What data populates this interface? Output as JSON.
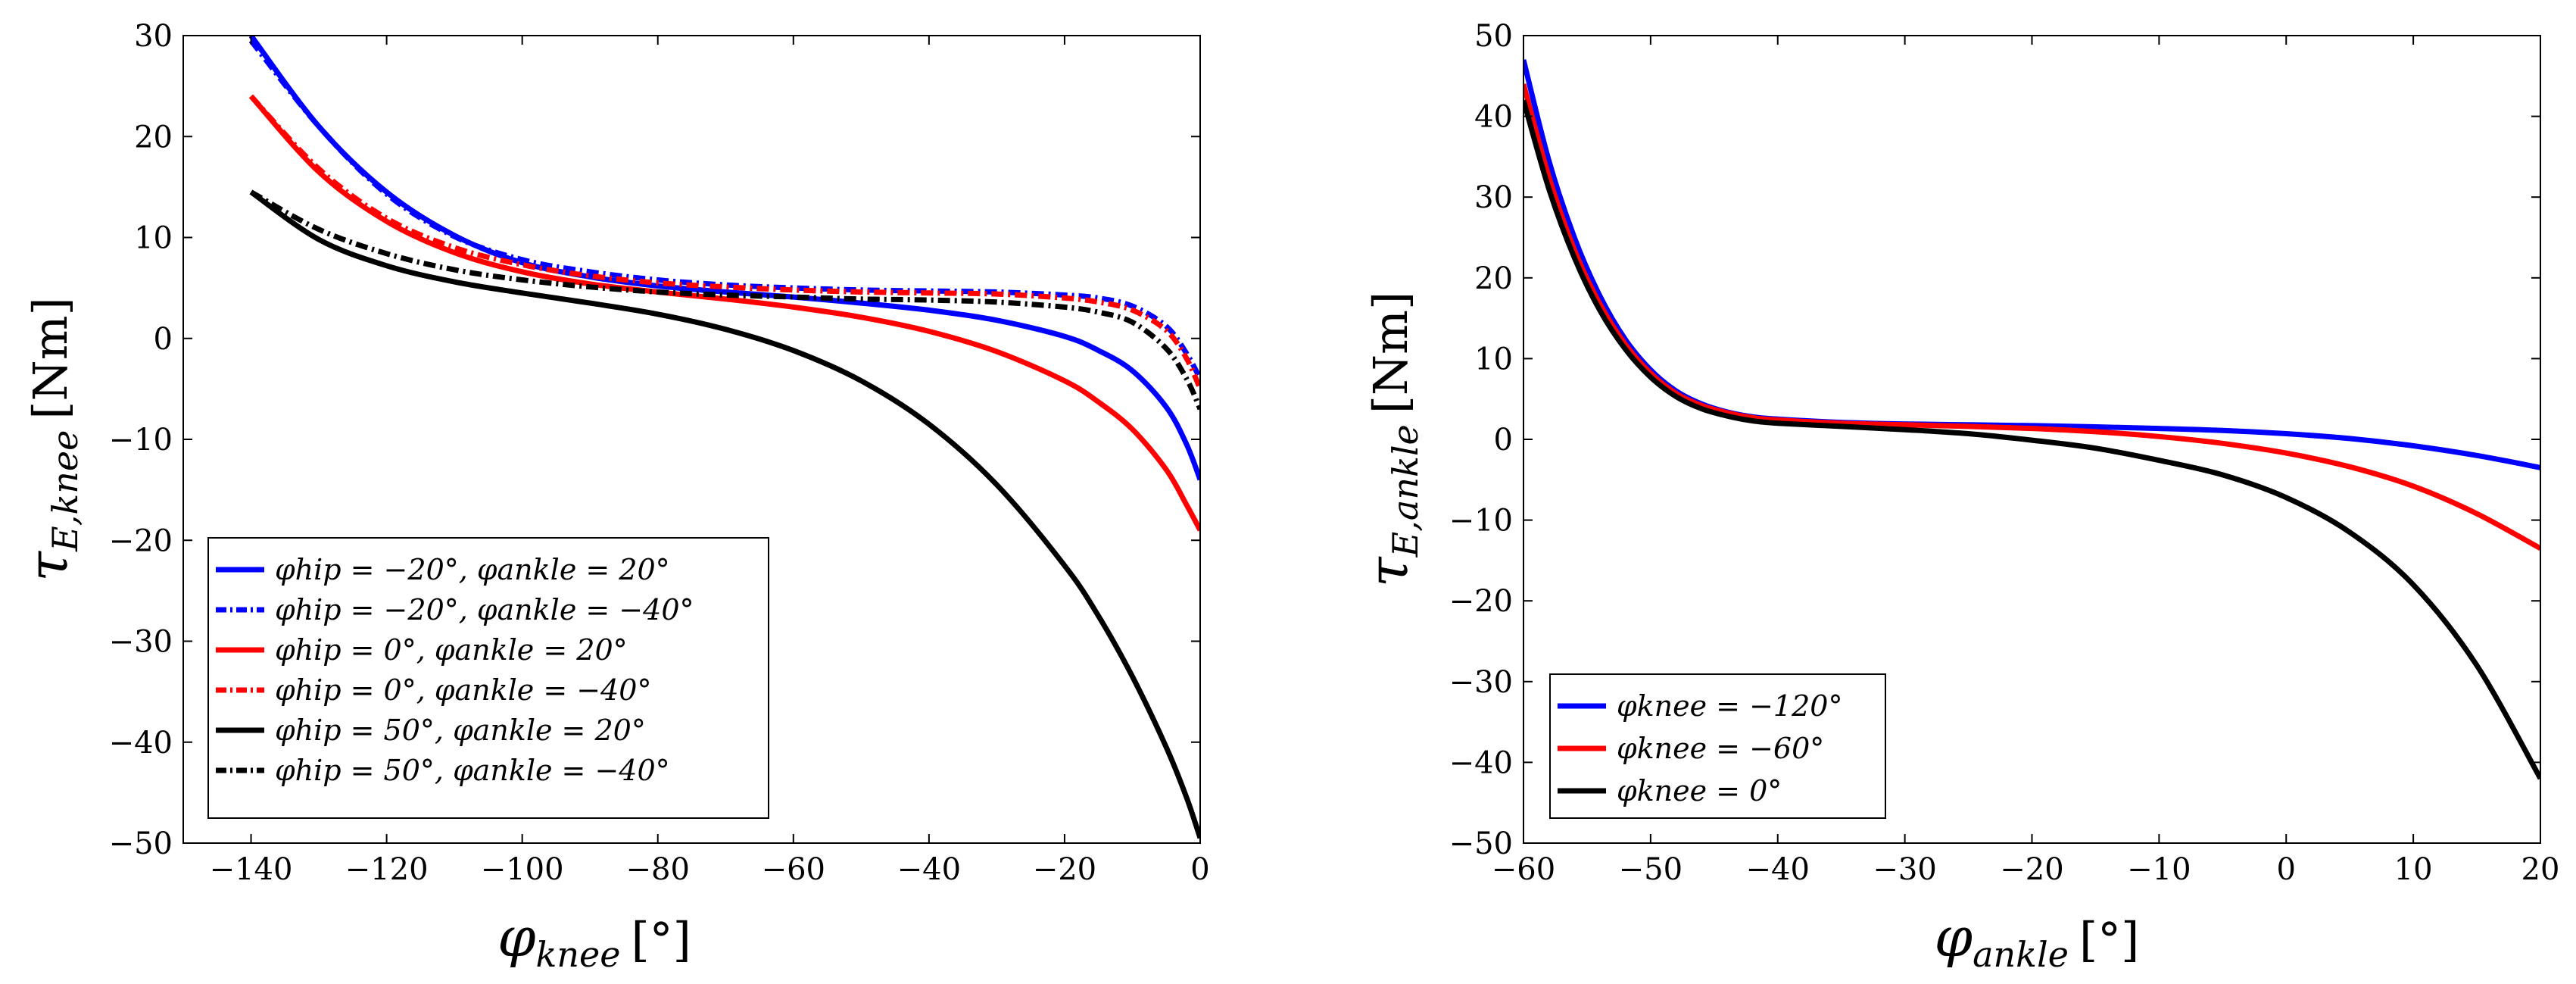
{
  "chart_data": [
    {
      "type": "line",
      "xlabel": "φknee [°]",
      "ylabel": "τE,knee [Nm]",
      "xlabel_var": "φ",
      "xlabel_sub": "knee",
      "xlabel_unit": "[°]",
      "ylabel_var": "τ",
      "ylabel_sub": "E,knee",
      "ylabel_unit": "[Nm]",
      "xlim": [
        -150,
        0
      ],
      "ylim": [
        -50,
        30
      ],
      "xticks": [
        "−140",
        "−120",
        "−100",
        "−80",
        "−60",
        "−40",
        "−20",
        "0"
      ],
      "yticks": [
        "30",
        "20",
        "10",
        "0",
        "−10",
        "−20",
        "−30",
        "−40",
        "−50"
      ],
      "legend_position": "bottom-left",
      "series": [
        {
          "name": "φhip = −20°, φankle = 20°",
          "color": "#0000ff",
          "dash": "solid",
          "x": [
            -140,
            -130,
            -120,
            -110,
            -100,
            -90,
            -80,
            -70,
            -60,
            -50,
            -40,
            -30,
            -20,
            -15,
            -10,
            -5,
            -2,
            0
          ],
          "y": [
            30,
            21,
            14.5,
            10.2,
            7.5,
            6.1,
            5.2,
            4.6,
            4.1,
            3.5,
            2.8,
            1.8,
            0.2,
            -1.2,
            -3.2,
            -6.8,
            -10.5,
            -14
          ]
        },
        {
          "name": "φhip = −20°, φankle = −40°",
          "color": "#0000ff",
          "dash": "dashdot",
          "x": [
            -140,
            -130,
            -120,
            -110,
            -100,
            -90,
            -80,
            -70,
            -60,
            -50,
            -40,
            -30,
            -20,
            -15,
            -10,
            -5,
            -2,
            0
          ],
          "y": [
            29.5,
            21,
            14.3,
            10.1,
            7.8,
            6.6,
            5.8,
            5.3,
            5.0,
            4.8,
            4.7,
            4.6,
            4.3,
            4.0,
            3.2,
            1.2,
            -1.5,
            -4
          ]
        },
        {
          "name": "φhip = 0°, φankle = 20°",
          "color": "#ff0000",
          "dash": "solid",
          "x": [
            -140,
            -130,
            -120,
            -110,
            -100,
            -90,
            -80,
            -70,
            -60,
            -50,
            -40,
            -30,
            -20,
            -15,
            -10,
            -5,
            -2,
            0
          ],
          "y": [
            24,
            16.5,
            11.6,
            8.5,
            6.6,
            5.4,
            4.6,
            3.9,
            3.1,
            2.1,
            0.7,
            -1.3,
            -4.2,
            -6.3,
            -9,
            -13,
            -16.5,
            -19
          ]
        },
        {
          "name": "φhip = 0°, φankle = −40°",
          "color": "#ff0000",
          "dash": "dashdot",
          "x": [
            -140,
            -130,
            -120,
            -110,
            -100,
            -90,
            -80,
            -70,
            -60,
            -50,
            -40,
            -30,
            -20,
            -15,
            -10,
            -5,
            -2,
            0
          ],
          "y": [
            24,
            16.8,
            11.9,
            9.0,
            7.3,
            6.2,
            5.5,
            5.1,
            4.8,
            4.6,
            4.5,
            4.4,
            4.0,
            3.6,
            2.8,
            0.8,
            -2,
            -5
          ]
        },
        {
          "name": "φhip = 50°, φankle = 20°",
          "color": "#000000",
          "dash": "solid",
          "x": [
            -140,
            -130,
            -120,
            -110,
            -100,
            -90,
            -80,
            -70,
            -60,
            -50,
            -40,
            -30,
            -20,
            -15,
            -10,
            -5,
            -2,
            0
          ],
          "y": [
            14.5,
            9.8,
            7.2,
            5.6,
            4.5,
            3.5,
            2.4,
            0.9,
            -1.2,
            -4.2,
            -8.5,
            -14.5,
            -22.5,
            -27.5,
            -33.5,
            -40.5,
            -45.5,
            -49.5
          ]
        },
        {
          "name": "φhip = 50°, φankle = −40°",
          "color": "#000000",
          "dash": "dashdot",
          "x": [
            -140,
            -130,
            -120,
            -110,
            -100,
            -90,
            -80,
            -70,
            -60,
            -50,
            -40,
            -30,
            -20,
            -15,
            -10,
            -5,
            -2,
            0
          ],
          "y": [
            14.5,
            10.8,
            8.4,
            6.8,
            5.8,
            5.1,
            4.6,
            4.3,
            4.1,
            3.9,
            3.8,
            3.6,
            3.1,
            2.6,
            1.6,
            -1,
            -4,
            -7
          ]
        }
      ]
    },
    {
      "type": "line",
      "xlabel": "φankle [°]",
      "ylabel": "τE,ankle [Nm]",
      "xlabel_var": "φ",
      "xlabel_sub": "ankle",
      "xlabel_unit": "[°]",
      "ylabel_var": "τ",
      "ylabel_sub": "E,ankle",
      "ylabel_unit": "[Nm]",
      "xlim": [
        -60,
        20
      ],
      "ylim": [
        -50,
        50
      ],
      "xticks": [
        "−60",
        "−50",
        "−40",
        "−30",
        "−20",
        "−10",
        "0",
        "10",
        "20"
      ],
      "yticks": [
        "50",
        "40",
        "30",
        "20",
        "10",
        "0",
        "−10",
        "−20",
        "−30",
        "−40",
        "−50"
      ],
      "legend_position": "bottom-left",
      "series": [
        {
          "name": "φknee = −120°",
          "color": "#0000ff",
          "dash": "solid",
          "x": [
            -60,
            -58,
            -56,
            -54,
            -52,
            -50,
            -48,
            -46,
            -44,
            -42,
            -40,
            -35,
            -30,
            -25,
            -20,
            -15,
            -10,
            -5,
            0,
            5,
            10,
            15,
            20
          ],
          "y": [
            47,
            34.5,
            25,
            17.8,
            12.4,
            8.6,
            6.0,
            4.4,
            3.4,
            2.8,
            2.5,
            2.1,
            1.9,
            1.8,
            1.7,
            1.55,
            1.35,
            1.1,
            0.7,
            0.1,
            -0.8,
            -2,
            -3.5
          ]
        },
        {
          "name": "φknee = −60°",
          "color": "#ff0000",
          "dash": "solid",
          "x": [
            -60,
            -58,
            -56,
            -54,
            -52,
            -50,
            -48,
            -46,
            -44,
            -42,
            -40,
            -35,
            -30,
            -25,
            -20,
            -15,
            -10,
            -5,
            0,
            5,
            10,
            15,
            20
          ],
          "y": [
            44,
            32.5,
            23.5,
            16.8,
            11.8,
            8.2,
            5.7,
            4.2,
            3.3,
            2.7,
            2.4,
            2.0,
            1.8,
            1.6,
            1.35,
            0.95,
            0.35,
            -0.5,
            -1.7,
            -3.4,
            -5.8,
            -9.2,
            -13.5
          ]
        },
        {
          "name": "φknee = 0°",
          "color": "#000000",
          "dash": "solid",
          "x": [
            -60,
            -58,
            -56,
            -54,
            -52,
            -50,
            -48,
            -46,
            -44,
            -42,
            -40,
            -35,
            -30,
            -25,
            -20,
            -15,
            -10,
            -5,
            0,
            5,
            10,
            15,
            20
          ],
          "y": [
            42,
            31,
            22.5,
            16,
            11.2,
            7.7,
            5.3,
            3.8,
            2.9,
            2.3,
            2.0,
            1.6,
            1.2,
            0.7,
            -0.1,
            -1.1,
            -2.6,
            -4.4,
            -7.2,
            -11.5,
            -18,
            -28,
            -42
          ]
        }
      ]
    }
  ]
}
